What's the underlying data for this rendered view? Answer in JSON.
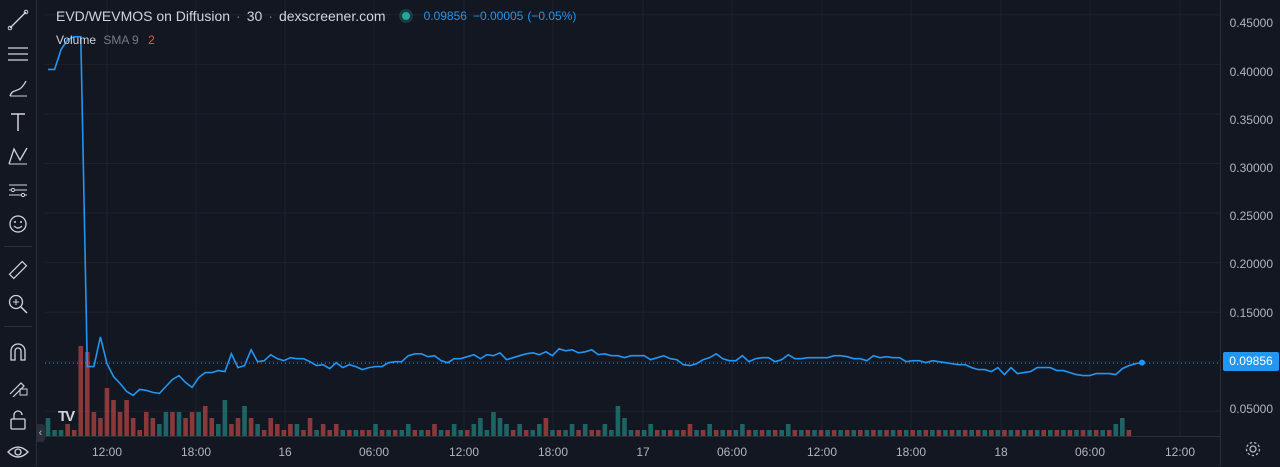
{
  "legend": {
    "symbol": "EVD/WEVMOS on Diffusion",
    "interval": "30",
    "source": "dexscreener.com",
    "price": "0.09856",
    "change": "−0.00005",
    "change_pct": "(−0.05%)"
  },
  "volume_legend": {
    "label": "Volume",
    "sma": "SMA 9",
    "count": "2"
  },
  "price_axis": {
    "ticks": [
      "0.45000",
      "0.40000",
      "0.35000",
      "0.30000",
      "0.25000",
      "0.20000",
      "0.15000",
      "0.10000",
      "0.05000"
    ],
    "current_label": "0.09856"
  },
  "time_axis": {
    "ticks": [
      "12:00",
      "18:00",
      "16",
      "06:00",
      "12:00",
      "18:00",
      "17",
      "06:00",
      "12:00",
      "18:00",
      "18",
      "06:00",
      "12:00"
    ]
  },
  "toolbar": {
    "icons": [
      "trend-line-icon",
      "horizontal-lines-icon",
      "brush-icon",
      "text-icon",
      "pattern-icon",
      "measure-lines-icon",
      "emoji-icon",
      "ruler-icon",
      "zoom-in-icon",
      "magnet-icon",
      "lock-drawing-icon",
      "lock-icon",
      "eye-icon"
    ]
  },
  "colors": {
    "line": "#2196f3",
    "up": "#26a69a",
    "down": "#ef5350",
    "bg": "#131722",
    "grid": "#1e222d"
  },
  "chart_data": {
    "type": "line",
    "title": "EVD/WEVMOS on Diffusion · 30 · dexscreener.com",
    "ylim": [
      0.025,
      0.465
    ],
    "last_price": 0.09856,
    "price_series": [
      0.395,
      0.395,
      0.415,
      0.425,
      0.428,
      0.428,
      0.095,
      0.095,
      0.125,
      0.098,
      0.085,
      0.078,
      0.07,
      0.066,
      0.072,
      0.071,
      0.069,
      0.068,
      0.075,
      0.082,
      0.086,
      0.079,
      0.074,
      0.084,
      0.089,
      0.089,
      0.091,
      0.09,
      0.108,
      0.094,
      0.096,
      0.112,
      0.1,
      0.101,
      0.107,
      0.103,
      0.101,
      0.104,
      0.103,
      0.103,
      0.1,
      0.096,
      0.097,
      0.093,
      0.099,
      0.094,
      0.097,
      0.095,
      0.092,
      0.094,
      0.095,
      0.095,
      0.099,
      0.1,
      0.1,
      0.106,
      0.108,
      0.108,
      0.105,
      0.106,
      0.101,
      0.099,
      0.103,
      0.103,
      0.105,
      0.107,
      0.103,
      0.107,
      0.106,
      0.109,
      0.102,
      0.104,
      0.106,
      0.108,
      0.109,
      0.107,
      0.11,
      0.106,
      0.113,
      0.111,
      0.112,
      0.109,
      0.11,
      0.112,
      0.107,
      0.108,
      0.106,
      0.106,
      0.104,
      0.106,
      0.106,
      0.106,
      0.102,
      0.104,
      0.106,
      0.103,
      0.102,
      0.097,
      0.096,
      0.098,
      0.102,
      0.104,
      0.108,
      0.103,
      0.101,
      0.101,
      0.106,
      0.1,
      0.103,
      0.104,
      0.104,
      0.1,
      0.102,
      0.107,
      0.103,
      0.103,
      0.104,
      0.104,
      0.104,
      0.104,
      0.106,
      0.106,
      0.105,
      0.103,
      0.103,
      0.101,
      0.106,
      0.104,
      0.105,
      0.104,
      0.104,
      0.1,
      0.101,
      0.101,
      0.099,
      0.101,
      0.1,
      0.099,
      0.098,
      0.097,
      0.097,
      0.094,
      0.092,
      0.092,
      0.09,
      0.094,
      0.087,
      0.094,
      0.088,
      0.089,
      0.09,
      0.094,
      0.094,
      0.094,
      0.091,
      0.091,
      0.089,
      0.087,
      0.086,
      0.086,
      0.088,
      0.088,
      0.088,
      0.087,
      0.093,
      0.096,
      0.098,
      0.099
    ],
    "volume_series": [
      [
        3,
        1
      ],
      [
        1,
        1
      ],
      [
        1,
        1
      ],
      [
        2,
        0
      ],
      [
        1,
        0
      ],
      [
        15,
        0
      ],
      [
        14,
        0
      ],
      [
        4,
        0
      ],
      [
        3,
        0
      ],
      [
        8,
        0
      ],
      [
        6,
        0
      ],
      [
        4,
        0
      ],
      [
        6,
        0
      ],
      [
        3,
        0
      ],
      [
        1,
        0
      ],
      [
        4,
        0
      ],
      [
        3,
        0
      ],
      [
        2,
        1
      ],
      [
        4,
        1
      ],
      [
        4,
        0
      ],
      [
        4,
        1
      ],
      [
        3,
        0
      ],
      [
        4,
        0
      ],
      [
        4,
        1
      ],
      [
        5,
        0
      ],
      [
        3,
        0
      ],
      [
        2,
        1
      ],
      [
        6,
        1
      ],
      [
        2,
        0
      ],
      [
        3,
        0
      ],
      [
        5,
        1
      ],
      [
        3,
        0
      ],
      [
        2,
        1
      ],
      [
        1,
        0
      ],
      [
        3,
        0
      ],
      [
        2,
        0
      ],
      [
        1,
        0
      ],
      [
        2,
        0
      ],
      [
        2,
        1
      ],
      [
        1,
        0
      ],
      [
        3,
        0
      ],
      [
        1,
        1
      ],
      [
        2,
        0
      ],
      [
        1,
        0
      ],
      [
        2,
        0
      ],
      [
        1,
        1
      ],
      [
        1,
        0
      ],
      [
        1,
        1
      ],
      [
        1,
        0
      ],
      [
        1,
        0
      ],
      [
        2,
        1
      ],
      [
        1,
        0
      ],
      [
        1,
        1
      ],
      [
        1,
        0
      ],
      [
        1,
        1
      ],
      [
        2,
        1
      ],
      [
        1,
        0
      ],
      [
        1,
        1
      ],
      [
        1,
        0
      ],
      [
        2,
        0
      ],
      [
        1,
        1
      ],
      [
        1,
        0
      ],
      [
        2,
        1
      ],
      [
        1,
        1
      ],
      [
        1,
        0
      ],
      [
        2,
        1
      ],
      [
        3,
        1
      ],
      [
        1,
        1
      ],
      [
        4,
        1
      ],
      [
        3,
        1
      ],
      [
        2,
        1
      ],
      [
        1,
        0
      ],
      [
        2,
        1
      ],
      [
        1,
        0
      ],
      [
        1,
        1
      ],
      [
        2,
        1
      ],
      [
        3,
        0
      ],
      [
        1,
        1
      ],
      [
        1,
        0
      ],
      [
        1,
        1
      ],
      [
        2,
        1
      ],
      [
        1,
        0
      ],
      [
        2,
        1
      ],
      [
        1,
        0
      ],
      [
        1,
        0
      ],
      [
        2,
        1
      ],
      [
        1,
        1
      ],
      [
        5,
        1
      ],
      [
        3,
        1
      ],
      [
        1,
        1
      ],
      [
        1,
        0
      ],
      [
        1,
        1
      ],
      [
        2,
        1
      ],
      [
        1,
        0
      ],
      [
        1,
        1
      ],
      [
        1,
        0
      ],
      [
        1,
        1
      ],
      [
        1,
        0
      ],
      [
        2,
        0
      ],
      [
        1,
        1
      ],
      [
        1,
        0
      ],
      [
        2,
        1
      ],
      [
        1,
        0
      ],
      [
        1,
        1
      ],
      [
        1,
        0
      ],
      [
        1,
        1
      ],
      [
        2,
        1
      ],
      [
        1,
        0
      ],
      [
        1,
        1
      ],
      [
        1,
        0
      ],
      [
        1,
        1
      ],
      [
        1,
        0
      ],
      [
        1,
        1
      ],
      [
        2,
        1
      ],
      [
        1,
        0
      ],
      [
        1,
        1
      ],
      [
        1,
        0
      ],
      [
        1,
        1
      ],
      [
        1,
        0
      ],
      [
        1,
        1
      ],
      [
        1,
        0
      ],
      [
        1,
        1
      ],
      [
        1,
        0
      ],
      [
        1,
        1
      ],
      [
        1,
        0
      ],
      [
        1,
        1
      ],
      [
        1,
        0
      ],
      [
        1,
        1
      ],
      [
        1,
        0
      ],
      [
        1,
        1
      ],
      [
        1,
        0
      ],
      [
        1,
        1
      ],
      [
        1,
        0
      ],
      [
        1,
        1
      ],
      [
        1,
        0
      ],
      [
        1,
        1
      ],
      [
        1,
        0
      ],
      [
        1,
        1
      ],
      [
        1,
        0
      ],
      [
        1,
        1
      ],
      [
        1,
        0
      ],
      [
        1,
        1
      ],
      [
        1,
        0
      ],
      [
        1,
        1
      ],
      [
        1,
        0
      ],
      [
        1,
        1
      ],
      [
        1,
        0
      ],
      [
        1,
        1
      ],
      [
        1,
        0
      ],
      [
        1,
        1
      ],
      [
        1,
        0
      ],
      [
        1,
        1
      ],
      [
        1,
        0
      ],
      [
        1,
        1
      ],
      [
        1,
        0
      ],
      [
        1,
        1
      ],
      [
        1,
        0
      ],
      [
        1,
        1
      ],
      [
        1,
        0
      ],
      [
        1,
        1
      ],
      [
        1,
        0
      ],
      [
        1,
        1
      ],
      [
        1,
        0
      ],
      [
        2,
        1
      ],
      [
        3,
        1
      ],
      [
        1,
        0
      ]
    ]
  }
}
